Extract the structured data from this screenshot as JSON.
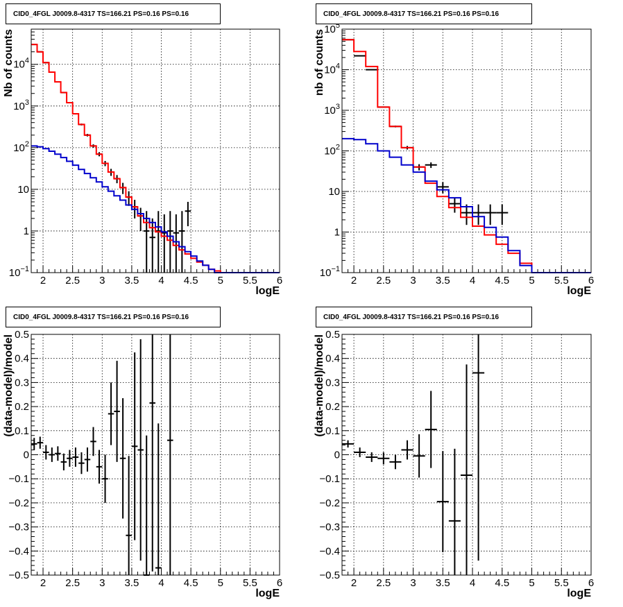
{
  "chart_data": [
    {
      "type": "line",
      "title": "CID0_4FGL J0009.8-4317 TS=166.21 PS=0.16 PS=0.16",
      "xlabel": "logE",
      "ylabel": "Nb of counts",
      "yscale": "log",
      "xlim": [
        1.8,
        6.0
      ],
      "ylim": [
        0.1,
        70000
      ],
      "xticks": [
        "2",
        "2.5",
        "3",
        "3.5",
        "4",
        "4.5",
        "5",
        "5.5",
        "6"
      ],
      "yticks": [
        "10^-1",
        "1",
        "10",
        "10^2",
        "10^3",
        "10^4"
      ],
      "grid": true,
      "series": [
        {
          "role": "data",
          "color": "#000000",
          "x": [
            1.85,
            1.95,
            2.05,
            2.15,
            2.25,
            2.35,
            2.45,
            2.55,
            2.65,
            2.75,
            2.85,
            2.95,
            3.05,
            3.15,
            3.25,
            3.35,
            3.45,
            3.55,
            3.65,
            3.75,
            3.85,
            3.95,
            4.05,
            4.15,
            4.25,
            4.35,
            4.45
          ],
          "y": [
            30000,
            20000,
            11000,
            6500,
            3800,
            2100,
            1200,
            650,
            360,
            200,
            110,
            70,
            42,
            26,
            18,
            11,
            6.5,
            3.8,
            2.3,
            1,
            0.7,
            1,
            0.9,
            1,
            0.9,
            1,
            3
          ],
          "ylo": [
            29800,
            19850,
            10900,
            6420,
            3740,
            2055,
            1165,
            625,
            342,
            186,
            100,
            62,
            36,
            21,
            14,
            7.7,
            4,
            2,
            1,
            0.1,
            0.1,
            0.1,
            0.1,
            0.1,
            0.1,
            0.1,
            1.3
          ],
          "yhi": [
            30200,
            20150,
            11100,
            6580,
            3860,
            2145,
            1235,
            675,
            378,
            214,
            120,
            78,
            48,
            31,
            22,
            14.3,
            9,
            5.6,
            3.6,
            3,
            2,
            3,
            2.5,
            3,
            2.5,
            3,
            5
          ]
        },
        {
          "role": "total_model",
          "color": "#ff0000",
          "edges": [
            1.8,
            1.9,
            2.0,
            2.1,
            2.2,
            2.3,
            2.4,
            2.5,
            2.6,
            2.7,
            2.8,
            2.9,
            3.0,
            3.1,
            3.2,
            3.3,
            3.4,
            3.5,
            3.6,
            3.7,
            3.8,
            3.9,
            4.0,
            4.1,
            4.2,
            4.3,
            4.4,
            4.5,
            4.6,
            4.7,
            4.8,
            4.9,
            5.0,
            6.0
          ],
          "values": [
            30000,
            20000,
            11000,
            6500,
            3800,
            2100,
            1200,
            650,
            360,
            200,
            110,
            70,
            42,
            26,
            18,
            11,
            6.5,
            3.8,
            2.3,
            1.6,
            1.2,
            0.95,
            0.75,
            0.6,
            0.45,
            0.35,
            0.28,
            0.22,
            0.18,
            0.15,
            0.12,
            0.11,
            0.1
          ]
        },
        {
          "role": "source_model",
          "color": "#0000cc",
          "edges": [
            1.8,
            1.9,
            2.0,
            2.1,
            2.2,
            2.3,
            2.4,
            2.5,
            2.6,
            2.7,
            2.8,
            2.9,
            3.0,
            3.1,
            3.2,
            3.3,
            3.4,
            3.5,
            3.6,
            3.7,
            3.8,
            3.9,
            4.0,
            4.1,
            4.2,
            4.3,
            4.4,
            4.5,
            4.6,
            4.7,
            4.8,
            4.9,
            5.0,
            6.0
          ],
          "values": [
            110,
            105,
            95,
            82,
            70,
            58,
            47,
            38,
            30,
            24,
            19,
            15,
            11.5,
            9,
            7,
            5.5,
            4.2,
            3.3,
            2.6,
            2,
            1.6,
            1.25,
            0.95,
            0.75,
            0.55,
            0.42,
            0.32,
            0.25,
            0.19,
            0.15,
            0.12,
            0.1,
            0.1
          ]
        }
      ]
    },
    {
      "type": "line",
      "title": "CID0_4FGL J0009.8-4317 TS=166.21 PS=0.16 PS=0.16",
      "xlabel": "logE",
      "ylabel": "nb of counts",
      "yscale": "log",
      "xlim": [
        1.8,
        6.0
      ],
      "ylim": [
        0.1,
        100000
      ],
      "xticks": [
        "2",
        "2.5",
        "3",
        "3.5",
        "4",
        "4.5",
        "5",
        "5.5",
        "6"
      ],
      "yticks": [
        "10^-1",
        "1",
        "10",
        "10^2",
        "10^3",
        "10^4",
        "10^5"
      ],
      "grid": true,
      "series": [
        {
          "role": "data",
          "color": "#000000",
          "x": [
            1.9,
            2.1,
            2.3,
            2.5,
            2.7,
            2.9,
            3.1,
            3.3,
            3.5,
            3.7,
            3.9,
            4.1,
            4.3,
            4.5
          ],
          "y": [
            55000,
            22000,
            10000,
            1200,
            400,
            120,
            40,
            45,
            13,
            5,
            3,
            3,
            3,
            3
          ],
          "ylo": [
            54700,
            21850,
            9900,
            1165,
            380,
            108,
            33,
            38,
            9,
            3,
            1.5,
            1.5,
            1.5,
            1.5
          ],
          "yhi": [
            55300,
            22150,
            10100,
            1235,
            420,
            132,
            47,
            52,
            17,
            7,
            4.8,
            4.8,
            4.8,
            4.8
          ]
        },
        {
          "role": "total_model",
          "color": "#ff0000",
          "edges": [
            1.8,
            2.0,
            2.2,
            2.4,
            2.6,
            2.8,
            3.0,
            3.2,
            3.4,
            3.6,
            3.8,
            4.0,
            4.2,
            4.4,
            4.6,
            4.8,
            5.0,
            6.0
          ],
          "values": [
            55000,
            28000,
            12000,
            1200,
            400,
            120,
            40,
            16,
            7.5,
            4,
            2.3,
            1.4,
            0.85,
            0.5,
            0.3,
            0.17,
            0.1
          ]
        },
        {
          "role": "source_model",
          "color": "#0000cc",
          "edges": [
            1.8,
            2.0,
            2.2,
            2.4,
            2.6,
            2.8,
            3.0,
            3.2,
            3.4,
            3.6,
            3.8,
            4.0,
            4.2,
            4.4,
            4.6,
            4.8,
            5.0,
            6.0
          ],
          "values": [
            200,
            190,
            150,
            100,
            70,
            45,
            30,
            18,
            11,
            7,
            4.2,
            2.4,
            1.3,
            0.75,
            0.35,
            0.15,
            0.1
          ]
        }
      ]
    },
    {
      "type": "scatter",
      "title": "CID0_4FGL J0009.8-4317 TS=166.21 PS=0.16 PS=0.16",
      "xlabel": "logE",
      "ylabel": "(data-model)/model",
      "xlim": [
        1.8,
        6.0
      ],
      "ylim": [
        -0.5,
        0.5
      ],
      "xticks": [
        "2",
        "2.5",
        "3",
        "3.5",
        "4",
        "4.5",
        "5",
        "5.5",
        "6"
      ],
      "yticks": [
        "-0.5",
        "-0.4",
        "-0.3",
        "-0.2",
        "-0.1",
        "0",
        "0.1",
        "0.2",
        "0.3",
        "0.4",
        "0.5"
      ],
      "grid": true,
      "series": [
        {
          "role": "residual",
          "color": "#000000",
          "x": [
            1.85,
            1.95,
            2.05,
            2.15,
            2.25,
            2.35,
            2.45,
            2.55,
            2.65,
            2.75,
            2.85,
            2.95,
            3.05,
            3.15,
            3.25,
            3.35,
            3.45,
            3.55,
            3.65,
            3.75,
            3.85,
            3.95,
            4.15
          ],
          "y": [
            0.045,
            0.05,
            0.01,
            0.0,
            0.005,
            -0.03,
            -0.015,
            -0.01,
            -0.035,
            -0.02,
            0.055,
            -0.05,
            -0.1,
            0.17,
            0.18,
            -0.015,
            -0.335,
            0.035,
            0.02,
            -0.52,
            0.215,
            -0.47,
            0.06
          ],
          "err": [
            0.025,
            0.025,
            0.03,
            0.03,
            0.03,
            0.035,
            0.035,
            0.04,
            0.045,
            0.05,
            0.06,
            0.07,
            0.1,
            0.13,
            0.21,
            0.25,
            0.33,
            0.39,
            0.46,
            0.6,
            0.7,
            0.6,
            0.6
          ]
        }
      ]
    },
    {
      "type": "scatter",
      "title": "CID0_4FGL J0009.8-4317 TS=166.21 PS=0.16 PS=0.16",
      "xlabel": "logE",
      "ylabel": "(data-model)/model",
      "xlim": [
        1.8,
        6.0
      ],
      "ylim": [
        -0.5,
        0.5
      ],
      "xticks": [
        "2",
        "2.5",
        "3",
        "3.5",
        "4",
        "4.5",
        "5",
        "5.5",
        "6"
      ],
      "yticks": [
        "-0.5",
        "-0.4",
        "-0.3",
        "-0.2",
        "-0.1",
        "0",
        "0.1",
        "0.2",
        "0.3",
        "0.4",
        "0.5"
      ],
      "grid": true,
      "series": [
        {
          "role": "residual",
          "color": "#000000",
          "x": [
            1.9,
            2.1,
            2.3,
            2.5,
            2.7,
            2.9,
            3.1,
            3.3,
            3.5,
            3.7,
            3.9,
            4.1
          ],
          "y": [
            0.045,
            0.01,
            -0.01,
            -0.015,
            -0.03,
            0.02,
            -0.005,
            0.105,
            -0.195,
            -0.275,
            -0.085,
            0.34
          ],
          "err": [
            0.015,
            0.02,
            0.02,
            0.025,
            0.03,
            0.04,
            0.09,
            0.16,
            0.21,
            0.3,
            0.46,
            0.78
          ]
        }
      ]
    }
  ]
}
